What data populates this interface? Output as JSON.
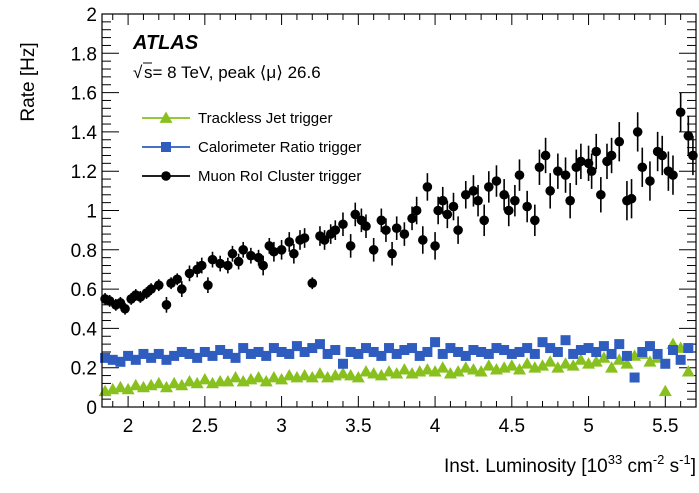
{
  "chart_data": {
    "type": "scatter",
    "title": "",
    "xlabel": "Inst. Luminosity [10",
    "xlabel_sup": "33",
    "xlabel_mid": " cm",
    "xlabel_sup2": "-2",
    "xlabel_end": " s",
    "xlabel_sup3": "-1",
    "xlabel_close": "]",
    "ylabel": "Rate [Hz]",
    "xlim": [
      1.83,
      5.7
    ],
    "ylim": [
      0,
      2
    ],
    "x_ticks": [
      2,
      2.5,
      3,
      3.5,
      4,
      4.5,
      5,
      5.5
    ],
    "x_tick_labels": [
      "2",
      "2.5",
      "3",
      "3.5",
      "4",
      "4.5",
      "5",
      "5.5"
    ],
    "y_ticks": [
      0,
      0.2,
      0.4,
      0.6,
      0.8,
      1,
      1.2,
      1.4,
      1.6,
      1.8,
      2
    ],
    "y_tick_labels": [
      "0",
      "0.2",
      "0.4",
      "0.6",
      "0.8",
      "1",
      "1.2",
      "1.4",
      "1.6",
      "1.8",
      "2"
    ],
    "annotations": {
      "experiment": "ATLAS",
      "sqrt_symbol": "√",
      "energy_text": "s= 8 TeV, peak ⟨μ⟩ 26.6"
    },
    "legend_position": "top-left",
    "grid": false,
    "series": [
      {
        "name": "Trackless Jet trigger",
        "color": "#88c01e",
        "marker": "triangle",
        "x": [
          1.85,
          1.9,
          1.95,
          2.0,
          2.05,
          2.1,
          2.15,
          2.2,
          2.25,
          2.3,
          2.35,
          2.4,
          2.45,
          2.5,
          2.55,
          2.6,
          2.65,
          2.7,
          2.75,
          2.8,
          2.85,
          2.9,
          2.95,
          3.0,
          3.05,
          3.1,
          3.15,
          3.2,
          3.25,
          3.3,
          3.35,
          3.4,
          3.45,
          3.5,
          3.55,
          3.6,
          3.65,
          3.7,
          3.75,
          3.8,
          3.85,
          3.9,
          3.95,
          4.0,
          4.05,
          4.1,
          4.15,
          4.2,
          4.25,
          4.3,
          4.35,
          4.4,
          4.45,
          4.5,
          4.55,
          4.6,
          4.65,
          4.7,
          4.75,
          4.8,
          4.85,
          4.9,
          4.95,
          5.0,
          5.05,
          5.1,
          5.15,
          5.2,
          5.25,
          5.3,
          5.35,
          5.4,
          5.45,
          5.5,
          5.55,
          5.6,
          5.65
        ],
        "y": [
          0.08,
          0.09,
          0.1,
          0.09,
          0.11,
          0.1,
          0.11,
          0.12,
          0.1,
          0.12,
          0.11,
          0.13,
          0.12,
          0.14,
          0.12,
          0.13,
          0.13,
          0.15,
          0.13,
          0.14,
          0.15,
          0.13,
          0.15,
          0.14,
          0.16,
          0.15,
          0.16,
          0.15,
          0.17,
          0.15,
          0.16,
          0.17,
          0.16,
          0.15,
          0.18,
          0.17,
          0.16,
          0.18,
          0.17,
          0.19,
          0.17,
          0.18,
          0.19,
          0.18,
          0.2,
          0.17,
          0.18,
          0.2,
          0.19,
          0.18,
          0.21,
          0.19,
          0.2,
          0.21,
          0.19,
          0.22,
          0.2,
          0.21,
          0.23,
          0.2,
          0.22,
          0.21,
          0.24,
          0.22,
          0.23,
          0.25,
          0.2,
          0.24,
          0.22,
          0.26,
          0.27,
          0.23,
          0.25,
          0.08,
          0.32,
          0.3,
          0.18
        ]
      },
      {
        "name": "Calorimeter Ratio trigger",
        "color": "#2f5cbf",
        "marker": "square",
        "x": [
          1.85,
          1.9,
          1.95,
          2.0,
          2.05,
          2.1,
          2.15,
          2.2,
          2.25,
          2.3,
          2.35,
          2.4,
          2.45,
          2.5,
          2.55,
          2.6,
          2.65,
          2.7,
          2.75,
          2.8,
          2.85,
          2.9,
          2.95,
          3.0,
          3.05,
          3.1,
          3.15,
          3.2,
          3.25,
          3.3,
          3.35,
          3.4,
          3.45,
          3.5,
          3.55,
          3.6,
          3.65,
          3.7,
          3.75,
          3.8,
          3.85,
          3.9,
          3.95,
          4.0,
          4.05,
          4.1,
          4.15,
          4.2,
          4.25,
          4.3,
          4.35,
          4.4,
          4.45,
          4.5,
          4.55,
          4.6,
          4.65,
          4.7,
          4.75,
          4.8,
          4.85,
          4.9,
          4.95,
          5.0,
          5.05,
          5.1,
          5.15,
          5.2,
          5.25,
          5.3,
          5.35,
          5.4,
          5.45,
          5.5,
          5.55,
          5.6,
          5.65
        ],
        "y": [
          0.25,
          0.24,
          0.23,
          0.26,
          0.24,
          0.27,
          0.25,
          0.27,
          0.24,
          0.26,
          0.28,
          0.27,
          0.25,
          0.28,
          0.26,
          0.29,
          0.27,
          0.25,
          0.3,
          0.27,
          0.28,
          0.26,
          0.3,
          0.28,
          0.27,
          0.31,
          0.28,
          0.3,
          0.32,
          0.27,
          0.29,
          0.22,
          0.28,
          0.27,
          0.3,
          0.28,
          0.26,
          0.3,
          0.27,
          0.29,
          0.3,
          0.26,
          0.28,
          0.33,
          0.27,
          0.3,
          0.28,
          0.26,
          0.29,
          0.28,
          0.27,
          0.3,
          0.29,
          0.27,
          0.28,
          0.3,
          0.27,
          0.33,
          0.3,
          0.28,
          0.34,
          0.27,
          0.29,
          0.3,
          0.28,
          0.31,
          0.27,
          0.32,
          0.26,
          0.15,
          0.28,
          0.31,
          0.27,
          0.22,
          0.29,
          0.24,
          0.3
        ]
      },
      {
        "name": "Muon RoI Cluster trigger",
        "color": "#000000",
        "marker": "circle",
        "x": [
          1.85,
          1.88,
          1.92,
          1.95,
          1.98,
          2.02,
          2.05,
          2.08,
          2.12,
          2.15,
          2.2,
          2.25,
          2.28,
          2.32,
          2.35,
          2.4,
          2.45,
          2.48,
          2.52,
          2.55,
          2.6,
          2.65,
          2.68,
          2.72,
          2.75,
          2.8,
          2.85,
          2.88,
          2.92,
          2.95,
          3.0,
          3.05,
          3.08,
          3.12,
          3.15,
          3.2,
          3.25,
          3.28,
          3.32,
          3.35,
          3.4,
          3.45,
          3.48,
          3.52,
          3.55,
          3.6,
          3.65,
          3.68,
          3.72,
          3.75,
          3.8,
          3.85,
          3.88,
          3.92,
          3.95,
          4.0,
          4.02,
          4.05,
          4.08,
          4.12,
          4.15,
          4.2,
          4.25,
          4.28,
          4.32,
          4.35,
          4.4,
          4.45,
          4.48,
          4.52,
          4.55,
          4.6,
          4.65,
          4.68,
          4.72,
          4.75,
          4.8,
          4.85,
          4.88,
          4.92,
          4.95,
          5.0,
          5.02,
          5.05,
          5.08,
          5.12,
          5.15,
          5.2,
          5.25,
          5.28,
          5.32,
          5.35,
          5.4,
          5.45,
          5.48,
          5.52,
          5.55,
          5.6,
          5.65,
          5.68
        ],
        "y": [
          0.55,
          0.54,
          0.52,
          0.53,
          0.5,
          0.55,
          0.57,
          0.56,
          0.58,
          0.6,
          0.62,
          0.52,
          0.63,
          0.65,
          0.6,
          0.68,
          0.7,
          0.72,
          0.62,
          0.75,
          0.73,
          0.72,
          0.78,
          0.74,
          0.8,
          0.77,
          0.76,
          0.72,
          0.82,
          0.79,
          0.8,
          0.84,
          0.78,
          0.85,
          0.86,
          0.63,
          0.87,
          0.85,
          0.88,
          0.9,
          0.93,
          0.82,
          0.98,
          0.95,
          0.92,
          0.8,
          0.95,
          0.9,
          0.78,
          0.91,
          0.88,
          0.96,
          1.0,
          0.85,
          1.12,
          0.82,
          1.0,
          1.05,
          0.98,
          1.02,
          0.9,
          1.08,
          1.1,
          1.05,
          0.95,
          1.12,
          1.15,
          1.08,
          1.0,
          1.05,
          1.18,
          1.02,
          0.95,
          1.22,
          1.28,
          1.1,
          1.2,
          1.18,
          1.05,
          1.22,
          1.25,
          1.24,
          1.2,
          1.3,
          1.08,
          1.25,
          1.28,
          1.35,
          1.05,
          1.06,
          1.4,
          1.22,
          1.15,
          1.3,
          1.28,
          1.2,
          1.18,
          1.5,
          1.38,
          1.28
        ],
        "err": [
          0.03,
          0.03,
          0.03,
          0.03,
          0.03,
          0.03,
          0.03,
          0.03,
          0.03,
          0.03,
          0.03,
          0.04,
          0.03,
          0.03,
          0.04,
          0.04,
          0.04,
          0.04,
          0.04,
          0.04,
          0.04,
          0.04,
          0.04,
          0.04,
          0.04,
          0.04,
          0.04,
          0.05,
          0.04,
          0.05,
          0.05,
          0.05,
          0.05,
          0.05,
          0.05,
          0.03,
          0.05,
          0.05,
          0.05,
          0.05,
          0.06,
          0.06,
          0.06,
          0.06,
          0.06,
          0.06,
          0.06,
          0.06,
          0.06,
          0.06,
          0.06,
          0.06,
          0.07,
          0.07,
          0.07,
          0.07,
          0.07,
          0.07,
          0.07,
          0.07,
          0.07,
          0.07,
          0.08,
          0.08,
          0.08,
          0.08,
          0.08,
          0.08,
          0.08,
          0.08,
          0.08,
          0.08,
          0.08,
          0.09,
          0.09,
          0.09,
          0.09,
          0.09,
          0.09,
          0.09,
          0.09,
          0.09,
          0.09,
          0.09,
          0.09,
          0.09,
          0.09,
          0.1,
          0.1,
          0.1,
          0.1,
          0.1,
          0.1,
          0.1,
          0.1,
          0.1,
          0.1,
          0.1,
          0.1,
          0.1
        ]
      }
    ]
  }
}
